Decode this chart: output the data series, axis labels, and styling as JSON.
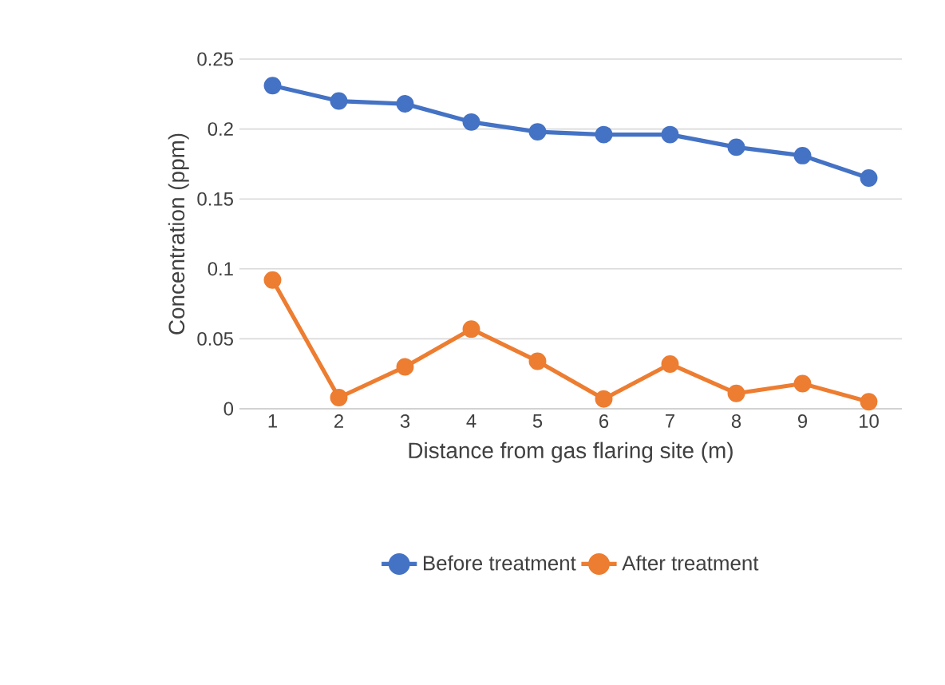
{
  "chart_data": {
    "type": "line",
    "xlabel": "Distance from gas flaring site (m)",
    "ylabel": "Concentration (ppm)",
    "categories": [
      "1",
      "2",
      "3",
      "4",
      "5",
      "6",
      "7",
      "8",
      "9",
      "10"
    ],
    "series": [
      {
        "name": "Before treatment",
        "color": "#4472c4",
        "values": [
          0.231,
          0.22,
          0.218,
          0.205,
          0.198,
          0.196,
          0.196,
          0.187,
          0.181,
          0.165
        ]
      },
      {
        "name": "After treatment",
        "color": "#ed7d31",
        "values": [
          0.092,
          0.008,
          0.03,
          0.057,
          0.034,
          0.007,
          0.032,
          0.011,
          0.018,
          0.005
        ]
      }
    ],
    "ylim": [
      0,
      0.25
    ],
    "yticks": [
      0,
      0.05,
      0.1,
      0.15,
      0.2,
      0.25
    ],
    "grid": "y",
    "legend": "bottom",
    "marker": "circle",
    "line_style": "solid"
  }
}
